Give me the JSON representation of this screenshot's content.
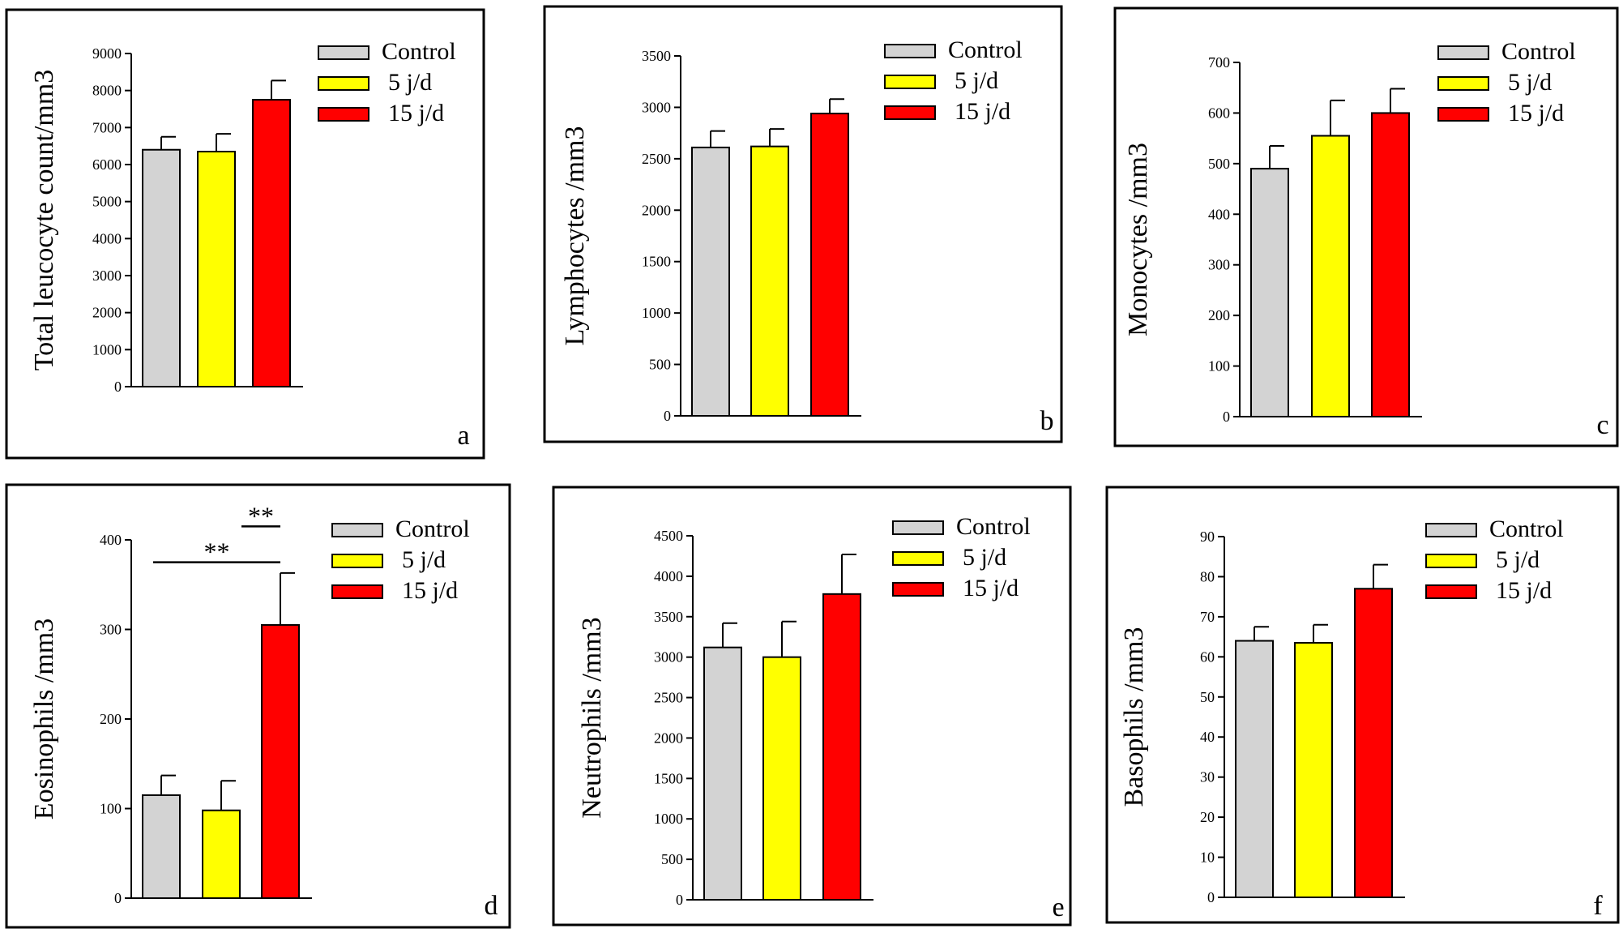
{
  "chart_data": [
    {
      "type": "bar",
      "panel_label": "a",
      "ylabel": "Total leucocyte count/mm3",
      "ylim": [
        0,
        9000
      ],
      "yticks": [
        0,
        1000,
        2000,
        3000,
        4000,
        5000,
        6000,
        7000,
        8000,
        9000
      ],
      "categories": [
        "Control",
        "5 j/d",
        "15 j/d"
      ],
      "values": [
        6400,
        6350,
        7750
      ],
      "errors": [
        350,
        480,
        520
      ],
      "legend": [
        "Control",
        "5 j/d",
        "15 j/d"
      ],
      "significance": []
    },
    {
      "type": "bar",
      "panel_label": "b",
      "ylabel": "Lymphocytes /mm3",
      "ylim": [
        0,
        3500
      ],
      "yticks": [
        0,
        500,
        1000,
        1500,
        2000,
        2500,
        3000,
        3500
      ],
      "categories": [
        "Control",
        "5 j/d",
        "15 j/d"
      ],
      "values": [
        2610,
        2620,
        2940
      ],
      "errors": [
        160,
        170,
        140
      ],
      "legend": [
        "Control",
        "5 j/d",
        "15 j/d"
      ],
      "significance": []
    },
    {
      "type": "bar",
      "panel_label": "c",
      "ylabel": "Monocytes /mm3",
      "ylim": [
        0,
        700
      ],
      "yticks": [
        0,
        100,
        200,
        300,
        400,
        500,
        600,
        700
      ],
      "categories": [
        "Control",
        "5 j/d",
        "15 j/d"
      ],
      "values": [
        490,
        555,
        600
      ],
      "errors": [
        45,
        70,
        48
      ],
      "legend": [
        "Control",
        "5 j/d",
        "15 j/d"
      ],
      "significance": []
    },
    {
      "type": "bar",
      "panel_label": "d",
      "ylabel": "Eosinophils /mm3",
      "ylim": [
        0,
        400
      ],
      "yticks": [
        0,
        100,
        200,
        300,
        400
      ],
      "categories": [
        "Control",
        "5 j/d",
        "15 j/d"
      ],
      "values": [
        115,
        98,
        305
      ],
      "errors": [
        22,
        33,
        58
      ],
      "legend": [
        "Control",
        "5 j/d",
        "15 j/d"
      ],
      "significance": [
        {
          "from": 1,
          "to": 2,
          "label": "**",
          "y": 415
        },
        {
          "from": 0,
          "to": 2,
          "label": "**",
          "y": 375
        }
      ]
    },
    {
      "type": "bar",
      "panel_label": "e",
      "ylabel": "Neutrophils  /mm3",
      "ylim": [
        0,
        4500
      ],
      "yticks": [
        0,
        500,
        1000,
        1500,
        2000,
        2500,
        3000,
        3500,
        4000,
        4500
      ],
      "categories": [
        "Control",
        "5 j/d",
        "15 j/d"
      ],
      "values": [
        3120,
        3000,
        3780
      ],
      "errors": [
        300,
        440,
        490
      ],
      "legend": [
        "Control",
        "5 j/d",
        "15 j/d"
      ],
      "significance": []
    },
    {
      "type": "bar",
      "panel_label": "f",
      "ylabel": "Basophils /mm3",
      "ylim": [
        0,
        90
      ],
      "yticks": [
        0,
        10,
        20,
        30,
        40,
        50,
        60,
        70,
        80,
        90
      ],
      "categories": [
        "Control",
        "5 j/d",
        "15 j/d"
      ],
      "values": [
        64,
        63.5,
        77
      ],
      "errors": [
        3.5,
        4.5,
        6
      ],
      "legend": [
        "Control",
        "5 j/d",
        "15 j/d"
      ],
      "significance": []
    }
  ],
  "colors": {
    "series": [
      "#d3d3d3",
      "#ffff00",
      "#ff0000"
    ],
    "axis": "#000000",
    "frame": "#000000"
  }
}
